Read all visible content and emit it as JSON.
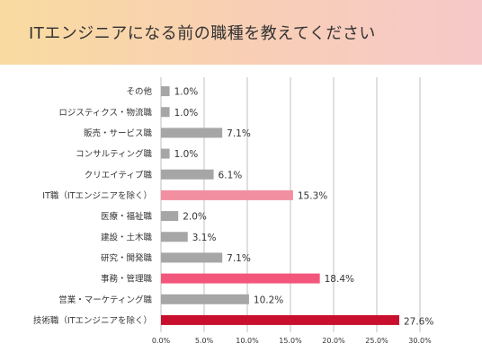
{
  "header": {
    "title": "ITエンジニアになる前の職種を教えてください"
  },
  "colors": {
    "banner_start": "#f9dba0",
    "banner_end": "#f6c8c9",
    "bar_default": "#a6a6a6",
    "bar_highlight_light": "#f28fa0",
    "bar_highlight_mid": "#f2567a",
    "bar_highlight_dark": "#c8102e",
    "grid": "#b0b0b0",
    "label_highlight": "#c8102e"
  },
  "chart_data": {
    "type": "bar",
    "orientation": "horizontal",
    "title": "",
    "xlabel": "",
    "ylabel": "",
    "xlim": [
      0,
      30
    ],
    "ticks": [
      "0.0%",
      "5.0%",
      "10.0%",
      "15.0%",
      "20.0%",
      "25.0%",
      "30.0%"
    ],
    "tick_values": [
      0,
      5,
      10,
      15,
      20,
      25,
      30
    ],
    "grid": true,
    "legend": "none",
    "categories": [
      "その他",
      "ロジスティクス・物流職",
      "販売・サービス職",
      "コンサルティング職",
      "クリエイティブ職",
      "IT職（ITエンジニアを除く）",
      "医療・福祉職",
      "建設・土木職",
      "研究・開発職",
      "事務・管理職",
      "営業・マーケティング職",
      "技術職（ITエンジニアを除く）"
    ],
    "values": [
      1.0,
      1.0,
      7.1,
      1.0,
      6.1,
      15.3,
      2.0,
      3.1,
      7.1,
      18.4,
      10.2,
      27.6
    ],
    "value_labels": [
      "1.0%",
      "1.0%",
      "7.1%",
      "1.0%",
      "6.1%",
      "15.3%",
      "2.0%",
      "3.1%",
      "7.1%",
      "18.4%",
      "10.2%",
      "27.6%"
    ],
    "bar_colors": [
      "#a6a6a6",
      "#a6a6a6",
      "#a6a6a6",
      "#a6a6a6",
      "#a6a6a6",
      "#f28fa0",
      "#a6a6a6",
      "#a6a6a6",
      "#a6a6a6",
      "#f2567a",
      "#a6a6a6",
      "#c8102e"
    ],
    "label_colors": [
      "#333333",
      "#333333",
      "#333333",
      "#333333",
      "#333333",
      "#c8102e",
      "#333333",
      "#333333",
      "#333333",
      "#c8102e",
      "#333333",
      "#c8102e"
    ]
  }
}
